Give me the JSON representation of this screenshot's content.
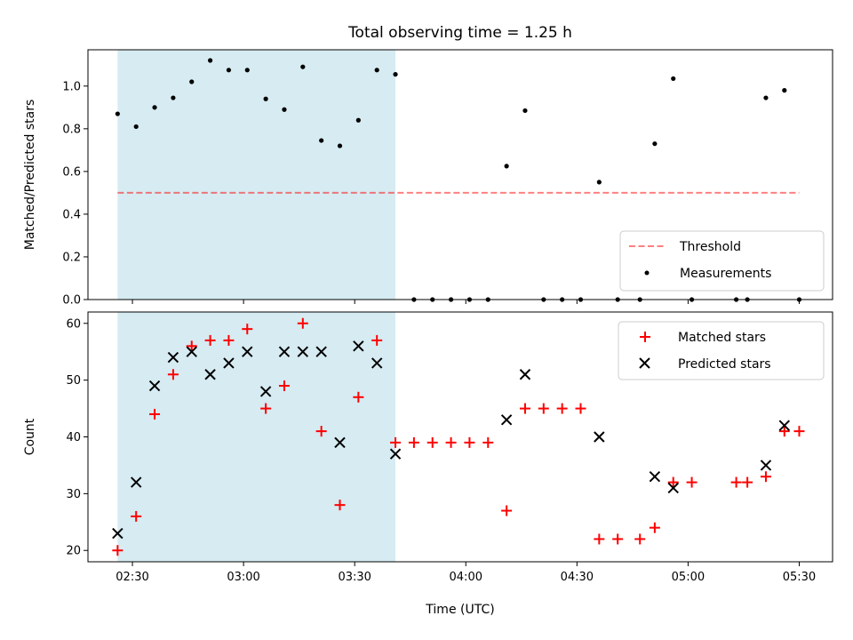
{
  "chart_data": {
    "type": "scatter",
    "title": "Total observing time = 1.25 h",
    "xlabel": "Time (UTC)",
    "x_ticks": [
      "02:30",
      "03:00",
      "03:30",
      "04:00",
      "04:30",
      "05:00",
      "05:30"
    ],
    "x_tick_minutes": [
      150,
      180,
      210,
      240,
      270,
      300,
      330
    ],
    "xlim_minutes": [
      138,
      339
    ],
    "shaded_interval_minutes": [
      146,
      221
    ],
    "shade_color": "#add8e6",
    "panels": [
      {
        "ylabel": "Matched/Predicted stars",
        "ylim": [
          0,
          1.17
        ],
        "y_ticks": [
          0.0,
          0.2,
          0.4,
          0.6,
          0.8,
          1.0
        ],
        "y_tick_labels": [
          "0.0",
          "0.2",
          "0.4",
          "0.6",
          "0.8",
          "1.0"
        ],
        "legend_position": "lower-right",
        "threshold": {
          "name": "Threshold",
          "value": 0.5,
          "x_range_minutes": [
            146,
            330
          ],
          "color": "#ff0000"
        },
        "series": [
          {
            "name": "Measurements",
            "marker": "dot",
            "color": "#000000",
            "points": [
              [
                146,
                0.87
              ],
              [
                151,
                0.81
              ],
              [
                156,
                0.9
              ],
              [
                161,
                0.945
              ],
              [
                166,
                1.02
              ],
              [
                171,
                1.12
              ],
              [
                176,
                1.075
              ],
              [
                181,
                1.075
              ],
              [
                186,
                0.94
              ],
              [
                191,
                0.89
              ],
              [
                196,
                1.09
              ],
              [
                201,
                0.745
              ],
              [
                206,
                0.72
              ],
              [
                211,
                0.84
              ],
              [
                216,
                1.075
              ],
              [
                221,
                1.055
              ],
              [
                226,
                0
              ],
              [
                231,
                0
              ],
              [
                236,
                0
              ],
              [
                241,
                0
              ],
              [
                246,
                0
              ],
              [
                251,
                0.625
              ],
              [
                256,
                0.885
              ],
              [
                261,
                0
              ],
              [
                266,
                0
              ],
              [
                271,
                0
              ],
              [
                276,
                0.55
              ],
              [
                281,
                0
              ],
              [
                287,
                0
              ],
              [
                291,
                0.73
              ],
              [
                296,
                1.035
              ],
              [
                301,
                0
              ],
              [
                313,
                0
              ],
              [
                316,
                0
              ],
              [
                321,
                0.945
              ],
              [
                326,
                0.98
              ],
              [
                330,
                0
              ]
            ]
          }
        ]
      },
      {
        "ylabel": "Count",
        "ylim": [
          18,
          62
        ],
        "y_ticks": [
          20,
          30,
          40,
          50,
          60
        ],
        "y_tick_labels": [
          "20",
          "30",
          "40",
          "50",
          "60"
        ],
        "legend_position": "upper-right",
        "series": [
          {
            "name": "Matched stars",
            "marker": "plus",
            "color": "#ff0000",
            "points": [
              [
                146,
                20
              ],
              [
                151,
                26
              ],
              [
                156,
                44
              ],
              [
                161,
                51
              ],
              [
                166,
                56
              ],
              [
                171,
                57
              ],
              [
                176,
                57
              ],
              [
                181,
                59
              ],
              [
                186,
                45
              ],
              [
                191,
                49
              ],
              [
                196,
                60
              ],
              [
                201,
                41
              ],
              [
                206,
                28
              ],
              [
                211,
                47
              ],
              [
                216,
                57
              ],
              [
                221,
                39
              ],
              [
                226,
                39
              ],
              [
                231,
                39
              ],
              [
                236,
                39
              ],
              [
                241,
                39
              ],
              [
                246,
                39
              ],
              [
                251,
                27
              ],
              [
                256,
                45
              ],
              [
                261,
                45
              ],
              [
                266,
                45
              ],
              [
                271,
                45
              ],
              [
                276,
                22
              ],
              [
                281,
                22
              ],
              [
                287,
                22
              ],
              [
                291,
                24
              ],
              [
                296,
                32
              ],
              [
                301,
                32
              ],
              [
                313,
                32
              ],
              [
                316,
                32
              ],
              [
                321,
                33
              ],
              [
                326,
                41
              ],
              [
                330,
                41
              ]
            ]
          },
          {
            "name": "Predicted stars",
            "marker": "x",
            "color": "#000000",
            "points": [
              [
                146,
                23
              ],
              [
                151,
                32
              ],
              [
                156,
                49
              ],
              [
                161,
                54
              ],
              [
                166,
                55
              ],
              [
                171,
                51
              ],
              [
                176,
                53
              ],
              [
                181,
                55
              ],
              [
                186,
                48
              ],
              [
                191,
                55
              ],
              [
                196,
                55
              ],
              [
                201,
                55
              ],
              [
                206,
                39
              ],
              [
                211,
                56
              ],
              [
                216,
                53
              ],
              [
                221,
                37
              ],
              [
                251,
                43
              ],
              [
                256,
                51
              ],
              [
                276,
                40
              ],
              [
                291,
                33
              ],
              [
                296,
                31
              ],
              [
                321,
                35
              ],
              [
                326,
                42
              ]
            ]
          }
        ]
      }
    ]
  }
}
